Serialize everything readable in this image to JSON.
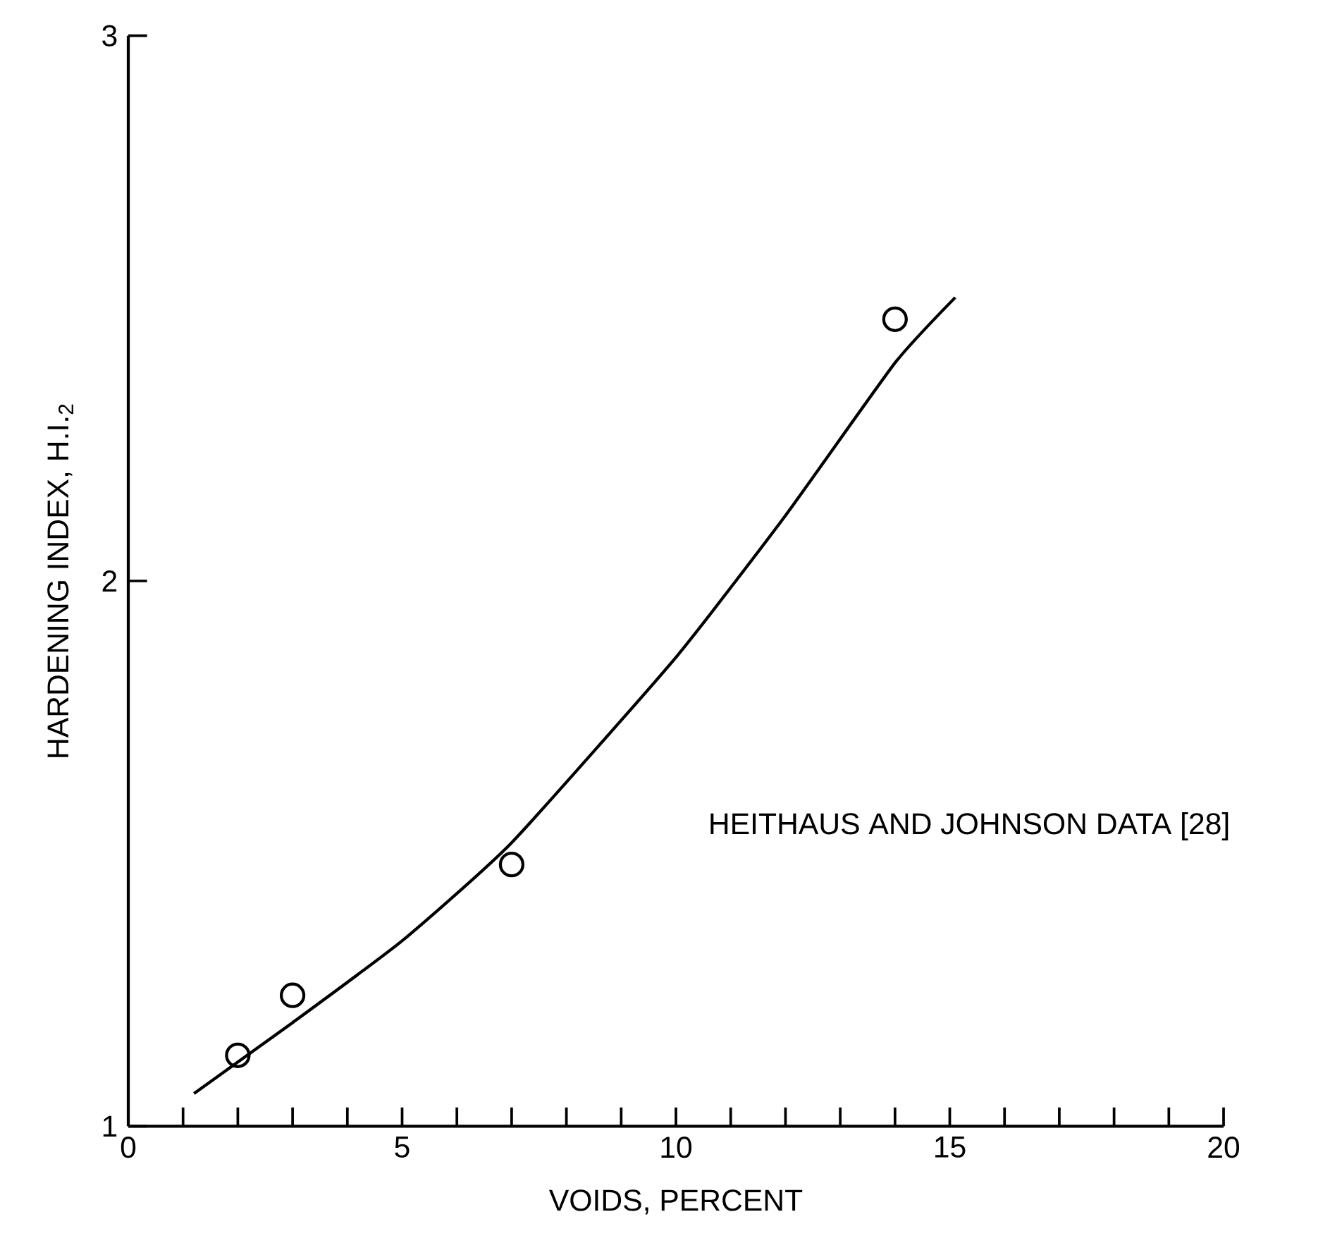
{
  "chart_data": {
    "type": "scatter",
    "xlabel": "VOIDS, PERCENT",
    "ylabel": "HARDENING INDEX, H.I.$_{2}$",
    "annotations": [
      "HEITHAUS AND JOHNSON DATA [28]"
    ],
    "xlim": [
      0,
      20
    ],
    "ylim": [
      1,
      3
    ],
    "xticks": [
      0,
      {
        "value": 1,
        "label": null
      },
      {
        "value": 2,
        "label": null
      },
      {
        "value": 3,
        "label": null
      },
      {
        "value": 4,
        "label": null
      },
      5,
      {
        "value": 6,
        "label": null
      },
      {
        "value": 7,
        "label": null
      },
      {
        "value": 8,
        "label": null
      },
      {
        "value": 9,
        "label": null
      },
      10,
      {
        "value": 11,
        "label": null
      },
      {
        "value": 12,
        "label": null
      },
      {
        "value": 13,
        "label": null
      },
      {
        "value": 14,
        "label": null
      },
      15,
      {
        "value": 16,
        "label": null
      },
      {
        "value": 17,
        "label": null
      },
      {
        "value": 18,
        "label": null
      },
      {
        "value": 19,
        "label": null
      },
      20
    ],
    "yticks": [
      1,
      2,
      3
    ],
    "marker": "circle",
    "series": [
      {
        "color": "#000000",
        "x": [
          2,
          3,
          7,
          14
        ],
        "values": [
          1.13,
          1.24,
          1.48,
          2.48
        ]
      },
      {
        "type": "line",
        "color": "#000000",
        "marker": "none",
        "line_style": "solid",
        "x": [
          1.2,
          3,
          5,
          7,
          10,
          12,
          14,
          15.1
        ],
        "values": [
          1.06,
          1.19,
          1.34,
          1.52,
          1.86,
          2.12,
          2.4,
          2.52
        ]
      }
    ]
  }
}
